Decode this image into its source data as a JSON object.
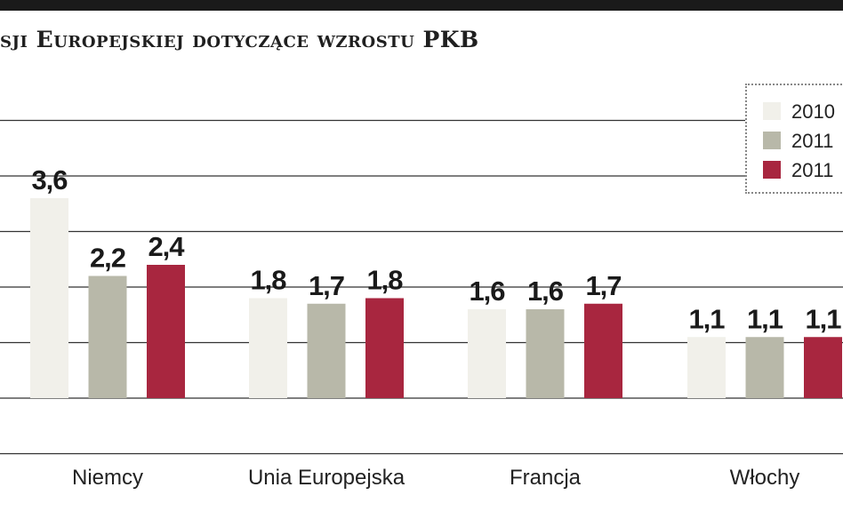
{
  "title": "sji Europejskiej dotyczące wzrostu PKB",
  "chart_data": {
    "type": "bar",
    "categories": [
      "Niemcy",
      "Unia Europejska",
      "Francja",
      "Włochy"
    ],
    "series": [
      {
        "name": "2010",
        "values": [
          3.6,
          1.8,
          1.6,
          1.1
        ],
        "labels": [
          "3,6",
          "1,8",
          "1,6",
          "1,1"
        ],
        "color": "#f1f0ea"
      },
      {
        "name": "2011",
        "values": [
          2.2,
          1.7,
          1.6,
          1.1
        ],
        "labels": [
          "2,2",
          "1,7",
          "1,6",
          "1,1"
        ],
        "color": "#b8b8a9"
      },
      {
        "name": "2011",
        "values": [
          2.4,
          1.8,
          1.7,
          1.1
        ],
        "labels": [
          "2,4",
          "1,8",
          "1,7",
          "1,1"
        ],
        "color": "#a8263f"
      }
    ],
    "ylim": [
      -1,
      5.5
    ],
    "grid": true,
    "legend": "top-right"
  }
}
